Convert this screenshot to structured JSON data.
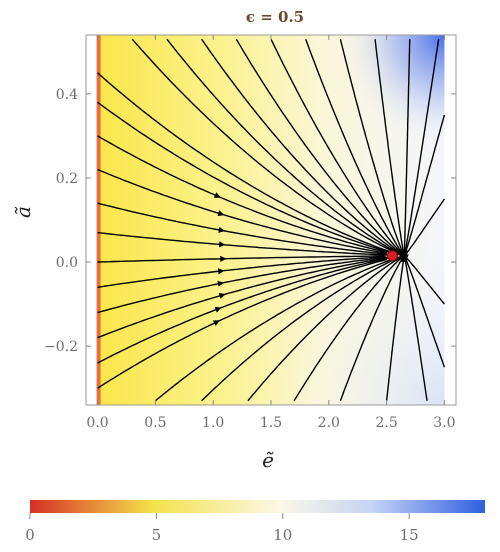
{
  "chart_data": {
    "type": "streamplot",
    "title": "ϵ = 0.5",
    "xlabel": "ẽ",
    "ylabel": "ã",
    "xlim": [
      -0.1,
      3.1
    ],
    "ylim": [
      -0.34,
      0.54
    ],
    "x_ticks": [
      "0.0",
      "0.5",
      "1.0",
      "1.5",
      "2.0",
      "2.5",
      "3.0"
    ],
    "x_tick_values": [
      0,
      0.5,
      1.0,
      1.5,
      2.0,
      2.5,
      3.0
    ],
    "y_ticks": [
      "-0.2",
      "0.0",
      "0.2",
      "0.4"
    ],
    "y_tick_values": [
      -0.2,
      0.0,
      0.2,
      0.4
    ],
    "fixed_point": {
      "x": 2.55,
      "y": 0.015,
      "color": "#d8201f"
    },
    "colorbar": {
      "ticks": [
        "0",
        "5",
        "10",
        "15"
      ],
      "tick_values": [
        0,
        5,
        10,
        15
      ],
      "range": [
        0,
        18
      ],
      "colors": [
        "#d62f27",
        "#f3e24a",
        "#fbf8e6",
        "#2f5fe0"
      ]
    },
    "streamline_color": "#000000"
  }
}
